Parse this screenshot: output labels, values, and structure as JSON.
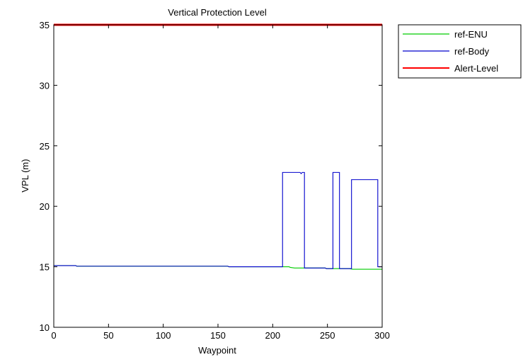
{
  "chart_data": {
    "type": "line",
    "title": "Vertical Protection Level",
    "xlabel": "Waypoint",
    "ylabel": "VPL (m)",
    "xlim": [
      0,
      300
    ],
    "ylim": [
      10,
      35
    ],
    "x_ticks": [
      0,
      50,
      100,
      150,
      200,
      250,
      300
    ],
    "y_ticks": [
      10,
      15,
      20,
      25,
      30,
      35
    ],
    "x_tick_labels": [
      "0",
      "50",
      "100",
      "150",
      "200",
      "250",
      "300"
    ],
    "y_tick_labels": [
      "10",
      "15",
      "20",
      "25",
      "30",
      "35"
    ],
    "grid": false,
    "legend_position": "outside-top-right",
    "series": [
      {
        "name": "ref-ENU",
        "color": "#00cc00",
        "points": [
          [
            0,
            15.1
          ],
          [
            1,
            15.1
          ],
          [
            20,
            15.1
          ],
          [
            21,
            15.05
          ],
          [
            159,
            15.05
          ],
          [
            160,
            15.0
          ],
          [
            215,
            15.0
          ],
          [
            216,
            14.95
          ],
          [
            220,
            14.9
          ],
          [
            248,
            14.9
          ],
          [
            249,
            14.85
          ],
          [
            270,
            14.85
          ],
          [
            273,
            14.8
          ],
          [
            300,
            14.8
          ]
        ]
      },
      {
        "name": "ref-Body",
        "color": "#0000cc",
        "points": [
          [
            0,
            15.1
          ],
          [
            1,
            15.1
          ],
          [
            20,
            15.1
          ],
          [
            21,
            15.05
          ],
          [
            159,
            15.05
          ],
          [
            160,
            15.0
          ],
          [
            209,
            15.0
          ],
          [
            209,
            22.8
          ],
          [
            225,
            22.8
          ],
          [
            226,
            22.7
          ],
          [
            227,
            22.8
          ],
          [
            229,
            22.8
          ],
          [
            229,
            14.9
          ],
          [
            248,
            14.9
          ],
          [
            249,
            14.85
          ],
          [
            255,
            14.85
          ],
          [
            255,
            22.8
          ],
          [
            261,
            22.8
          ],
          [
            261,
            14.85
          ],
          [
            272,
            14.85
          ],
          [
            272,
            22.2
          ],
          [
            296,
            22.2
          ],
          [
            296,
            15.0
          ],
          [
            300,
            15.0
          ]
        ]
      },
      {
        "name": "Alert-Level",
        "color": "#ff0000",
        "points": [
          [
            0,
            35
          ],
          [
            300,
            35
          ]
        ]
      }
    ]
  }
}
